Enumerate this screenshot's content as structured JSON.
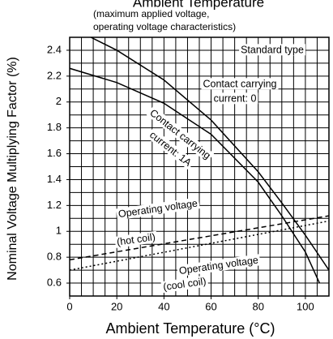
{
  "chart_data": {
    "type": "line",
    "title": "Ambient Temperature",
    "subtitle": [
      "(maximum applied voltage,",
      "operating voltage characteristics)"
    ],
    "x_label": "Ambient Temperature (°C)",
    "y_label": "Nominal Voltage Multiplying Factor (%)",
    "annotation": "Standard type",
    "xlim": [
      0,
      110
    ],
    "ylim": [
      0.5,
      2.5
    ],
    "xticks": [
      0,
      20,
      40,
      60,
      80,
      100
    ],
    "yticks": [
      0.6,
      0.8,
      1.0,
      1.2,
      1.4,
      1.6,
      1.8,
      2.0,
      2.2,
      2.4
    ],
    "grid": true,
    "xgrid_step": 5,
    "ygrid_step": 0.1,
    "series": [
      {
        "label": [
          "Contact carrying",
          "current: 0"
        ],
        "color": "#000000",
        "dash": "solid",
        "x": [
          9,
          20,
          40,
          60,
          80,
          90,
          100,
          110
        ],
        "values": [
          2.5,
          2.4,
          2.17,
          1.86,
          1.46,
          1.22,
          0.97,
          0.7
        ]
      },
      {
        "label": [
          "Contact carrying",
          "current: 1A"
        ],
        "color": "#000000",
        "dash": "solid",
        "x": [
          0,
          20,
          40,
          60,
          80,
          90,
          100,
          106
        ],
        "values": [
          2.26,
          2.15,
          1.99,
          1.75,
          1.38,
          1.12,
          0.84,
          0.6
        ]
      },
      {
        "label": [
          "Operating voltage",
          "(hot coil)"
        ],
        "color": "#000000",
        "dash": "dashed",
        "x": [
          0,
          110
        ],
        "values": [
          0.78,
          1.12
        ]
      },
      {
        "label": [
          "Operating voltage",
          "(cool coil)"
        ],
        "color": "#000000",
        "dash": "dotted",
        "x": [
          0,
          110
        ],
        "values": [
          0.7,
          1.08
        ]
      }
    ]
  }
}
